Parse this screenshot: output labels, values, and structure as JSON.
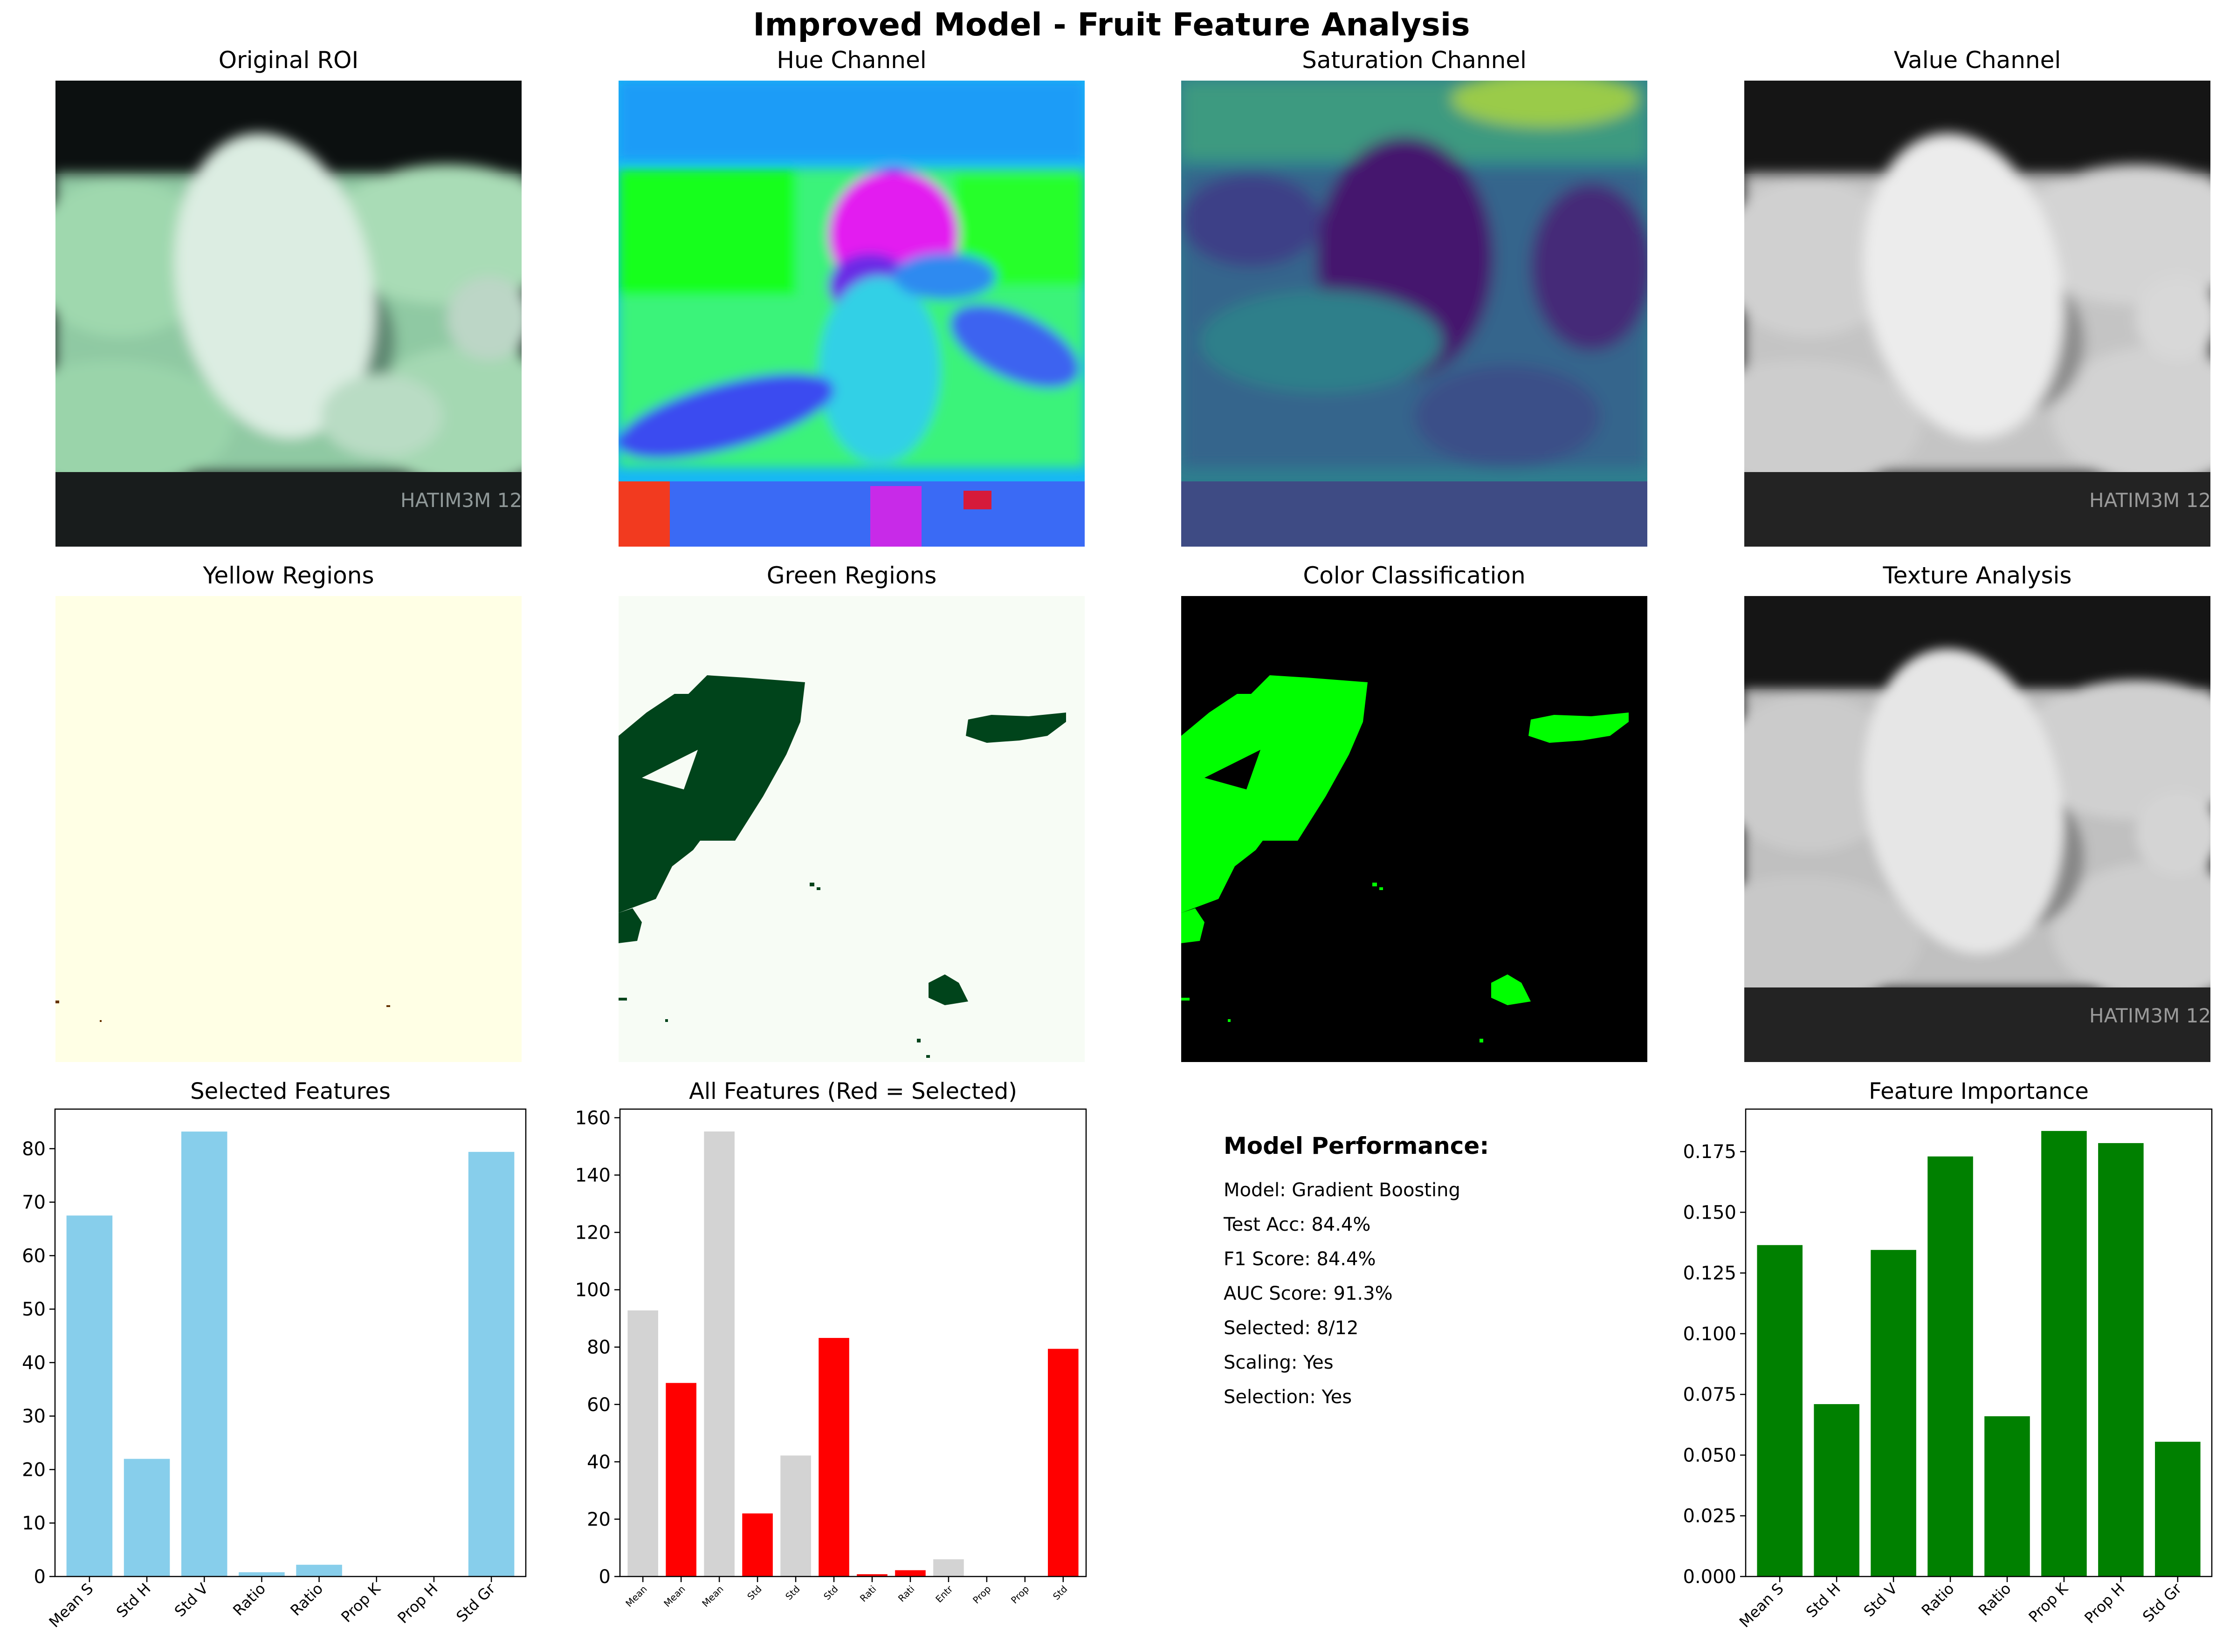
{
  "title": "Improved Model - Fruit Feature Analysis",
  "panels": {
    "original_roi": "Original ROI",
    "hue": "Hue Channel",
    "saturation": "Saturation Channel",
    "value": "Value Channel",
    "yellow": "Yellow Regions",
    "green": "Green Regions",
    "color_class": "Color Classification",
    "texture": "Texture Analysis"
  },
  "image_text": "HATIM3M 12",
  "metrics": {
    "heading": "Model Performance:",
    "lines": [
      "Model: Gradient Boosting",
      "Test Acc: 84.4%",
      "F1 Score: 84.4%",
      "AUC Score: 91.3%",
      "Selected: 8/12",
      "Scaling: Yes",
      "Selection: Yes"
    ]
  },
  "colors": {
    "selected_bar": "#87ceeb",
    "unselected_bar": "#d3d3d3",
    "highlight_bar": "#ff0000",
    "importance_bar": "#008000"
  },
  "chart_data": [
    {
      "type": "bar",
      "title": "Selected Features",
      "categories": [
        "Mean S",
        "Std H",
        "Std V",
        "Ratio",
        "Ratio",
        "Prop K",
        "Prop H",
        "Std Gr"
      ],
      "values": [
        67.5,
        22.0,
        83.2,
        0.8,
        2.2,
        0.0,
        0.0,
        79.4
      ],
      "ylim": [
        0,
        87.4
      ],
      "yticks": [
        0,
        10,
        20,
        30,
        40,
        50,
        60,
        70,
        80
      ],
      "ytick_labels": [
        "0",
        "10",
        "20",
        "30",
        "40",
        "50",
        "60",
        "70",
        "80"
      ],
      "xlabel": "",
      "ylabel": "",
      "color": "#87ceeb"
    },
    {
      "type": "bar",
      "title": "All Features (Red = Selected)",
      "categories": [
        "Mean",
        "Mean",
        "Mean",
        "Std",
        "Std",
        "Std",
        "Rati",
        "Rati",
        "Entr",
        "Prop",
        "Prop",
        "Std"
      ],
      "values": [
        92.8,
        67.5,
        155.2,
        22.0,
        42.2,
        83.2,
        0.8,
        2.2,
        6.0,
        0.0,
        0.0,
        79.4
      ],
      "selected": [
        false,
        true,
        false,
        true,
        false,
        true,
        true,
        true,
        false,
        true,
        true,
        true
      ],
      "ylim": [
        0,
        163
      ],
      "yticks": [
        0,
        20,
        40,
        60,
        80,
        100,
        120,
        140,
        160
      ],
      "ytick_labels": [
        "0",
        "20",
        "40",
        "60",
        "80",
        "100",
        "120",
        "140",
        "160"
      ],
      "xlabel": "",
      "ylabel": ""
    },
    {
      "type": "bar",
      "title": "Feature Importance",
      "categories": [
        "Mean S",
        "Std H",
        "Std V",
        "Ratio",
        "Ratio",
        "Prop K",
        "Prop H",
        "Std Gr"
      ],
      "values": [
        0.1365,
        0.071,
        0.1345,
        0.173,
        0.066,
        0.1835,
        0.1785,
        0.0555
      ],
      "ylim": [
        0,
        0.1925
      ],
      "yticks": [
        0,
        0.025,
        0.05,
        0.075,
        0.1,
        0.125,
        0.15,
        0.175
      ],
      "ytick_labels": [
        "0.000",
        "0.025",
        "0.050",
        "0.075",
        "0.100",
        "0.125",
        "0.150",
        "0.175"
      ],
      "xlabel": "",
      "ylabel": "",
      "color": "#008000"
    }
  ]
}
